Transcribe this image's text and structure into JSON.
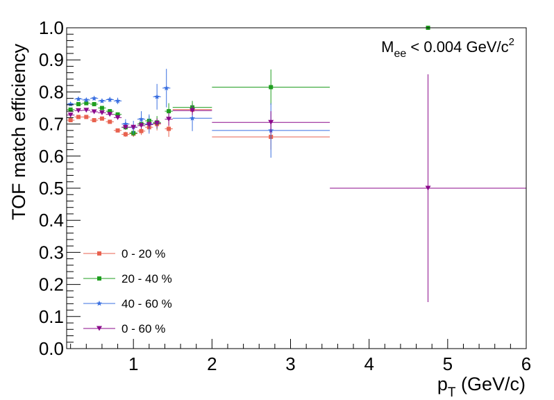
{
  "chart_data": {
    "type": "scatter",
    "xlabel_main": "p",
    "xlabel_sub": "T",
    "xlabel_rest": " (GeV/c)",
    "ylabel": "TOF match efficiency",
    "xlim": [
      0.15,
      6.0
    ],
    "ylim": [
      0.0,
      1.0
    ],
    "x_ticks": [
      1,
      2,
      3,
      4,
      5,
      6
    ],
    "x_tick_labels": [
      "1",
      "2",
      "3",
      "4",
      "5",
      "6"
    ],
    "y_ticks": [
      0.0,
      0.1,
      0.2,
      0.3,
      0.4,
      0.5,
      0.6,
      0.7,
      0.8,
      0.9,
      1.0
    ],
    "y_tick_labels": [
      "0.0",
      "0.1",
      "0.2",
      "0.3",
      "0.4",
      "0.5",
      "0.6",
      "0.7",
      "0.8",
      "0.9",
      "1.0"
    ],
    "grid": false,
    "legend_position": "bottom-left",
    "annotation": {
      "main": "M",
      "sub": "ee",
      "rest": " < 0.004 GeV/c",
      "sup": "2"
    },
    "series": [
      {
        "name": "0 - 20 %",
        "color": "#e8624f",
        "marker": "square",
        "points": [
          {
            "x": 0.2,
            "y": 0.712,
            "xerr": 0.05,
            "yerr": 0.006
          },
          {
            "x": 0.3,
            "y": 0.722,
            "xerr": 0.05,
            "yerr": 0.006
          },
          {
            "x": 0.4,
            "y": 0.722,
            "xerr": 0.05,
            "yerr": 0.006
          },
          {
            "x": 0.5,
            "y": 0.712,
            "xerr": 0.05,
            "yerr": 0.006
          },
          {
            "x": 0.6,
            "y": 0.717,
            "xerr": 0.05,
            "yerr": 0.006
          },
          {
            "x": 0.7,
            "y": 0.707,
            "xerr": 0.05,
            "yerr": 0.006
          },
          {
            "x": 0.8,
            "y": 0.68,
            "xerr": 0.05,
            "yerr": 0.006
          },
          {
            "x": 0.9,
            "y": 0.668,
            "xerr": 0.05,
            "yerr": 0.008
          },
          {
            "x": 1.0,
            "y": 0.67,
            "xerr": 0.05,
            "yerr": 0.01
          },
          {
            "x": 1.1,
            "y": 0.678,
            "xerr": 0.05,
            "yerr": 0.012
          },
          {
            "x": 1.2,
            "y": 0.69,
            "xerr": 0.05,
            "yerr": 0.015
          },
          {
            "x": 1.3,
            "y": 0.7,
            "xerr": 0.05,
            "yerr": 0.02
          },
          {
            "x": 1.45,
            "y": 0.685,
            "xerr": 0.05,
            "yerr": 0.025
          },
          {
            "x": 1.75,
            "y": 0.745,
            "xerr": 0.25,
            "yerr": 0.02
          },
          {
            "x": 2.75,
            "y": 0.66,
            "xerr": 0.75,
            "yerr": 0.04
          }
        ]
      },
      {
        "name": "20 - 40 %",
        "color": "#1f9e1f",
        "marker": "square",
        "points": [
          {
            "x": 0.2,
            "y": 0.745,
            "xerr": 0.05,
            "yerr": 0.006
          },
          {
            "x": 0.3,
            "y": 0.762,
            "xerr": 0.05,
            "yerr": 0.006
          },
          {
            "x": 0.4,
            "y": 0.765,
            "xerr": 0.05,
            "yerr": 0.006
          },
          {
            "x": 0.5,
            "y": 0.762,
            "xerr": 0.05,
            "yerr": 0.006
          },
          {
            "x": 0.6,
            "y": 0.75,
            "xerr": 0.05,
            "yerr": 0.006
          },
          {
            "x": 0.7,
            "y": 0.74,
            "xerr": 0.05,
            "yerr": 0.006
          },
          {
            "x": 0.8,
            "y": 0.73,
            "xerr": 0.05,
            "yerr": 0.006
          },
          {
            "x": 0.9,
            "y": 0.69,
            "xerr": 0.05,
            "yerr": 0.008
          },
          {
            "x": 1.0,
            "y": 0.672,
            "xerr": 0.05,
            "yerr": 0.01
          },
          {
            "x": 1.1,
            "y": 0.7,
            "xerr": 0.05,
            "yerr": 0.012
          },
          {
            "x": 1.2,
            "y": 0.71,
            "xerr": 0.05,
            "yerr": 0.015
          },
          {
            "x": 1.3,
            "y": 0.705,
            "xerr": 0.05,
            "yerr": 0.02
          },
          {
            "x": 1.45,
            "y": 0.74,
            "xerr": 0.05,
            "yerr": 0.025
          },
          {
            "x": 1.75,
            "y": 0.752,
            "xerr": 0.25,
            "yerr": 0.02
          },
          {
            "x": 2.75,
            "y": 0.815,
            "xerr": 0.75,
            "yerr": 0.055
          },
          {
            "x": 4.75,
            "y": 1.0,
            "xerr": 0.0,
            "yerr": 0.0
          }
        ]
      },
      {
        "name": "40 - 60 %",
        "color": "#3a6fe0",
        "marker": "star",
        "points": [
          {
            "x": 0.2,
            "y": 0.762,
            "xerr": 0.05,
            "yerr": 0.006
          },
          {
            "x": 0.3,
            "y": 0.778,
            "xerr": 0.05,
            "yerr": 0.006
          },
          {
            "x": 0.4,
            "y": 0.775,
            "xerr": 0.05,
            "yerr": 0.006
          },
          {
            "x": 0.5,
            "y": 0.78,
            "xerr": 0.05,
            "yerr": 0.006
          },
          {
            "x": 0.6,
            "y": 0.772,
            "xerr": 0.05,
            "yerr": 0.006
          },
          {
            "x": 0.7,
            "y": 0.776,
            "xerr": 0.05,
            "yerr": 0.008
          },
          {
            "x": 0.8,
            "y": 0.772,
            "xerr": 0.05,
            "yerr": 0.01
          },
          {
            "x": 0.9,
            "y": 0.7,
            "xerr": 0.05,
            "yerr": 0.015
          },
          {
            "x": 1.0,
            "y": 0.69,
            "xerr": 0.05,
            "yerr": 0.02
          },
          {
            "x": 1.1,
            "y": 0.715,
            "xerr": 0.05,
            "yerr": 0.025
          },
          {
            "x": 1.2,
            "y": 0.7,
            "xerr": 0.05,
            "yerr": 0.03
          },
          {
            "x": 1.3,
            "y": 0.785,
            "xerr": 0.05,
            "yerr": 0.04
          },
          {
            "x": 1.42,
            "y": 0.812,
            "xerr": 0.05,
            "yerr": 0.06
          },
          {
            "x": 1.75,
            "y": 0.718,
            "xerr": 0.25,
            "yerr": 0.04
          },
          {
            "x": 2.75,
            "y": 0.68,
            "xerr": 0.75,
            "yerr": 0.085
          }
        ]
      },
      {
        "name": "0 - 60 %",
        "color": "#8b0a8b",
        "marker": "triangle-down",
        "points": [
          {
            "x": 0.2,
            "y": 0.728,
            "xerr": 0.05,
            "yerr": 0.005
          },
          {
            "x": 0.3,
            "y": 0.742,
            "xerr": 0.05,
            "yerr": 0.005
          },
          {
            "x": 0.4,
            "y": 0.743,
            "xerr": 0.05,
            "yerr": 0.005
          },
          {
            "x": 0.5,
            "y": 0.738,
            "xerr": 0.05,
            "yerr": 0.005
          },
          {
            "x": 0.6,
            "y": 0.735,
            "xerr": 0.05,
            "yerr": 0.005
          },
          {
            "x": 0.7,
            "y": 0.73,
            "xerr": 0.05,
            "yerr": 0.005
          },
          {
            "x": 0.8,
            "y": 0.72,
            "xerr": 0.05,
            "yerr": 0.005
          },
          {
            "x": 0.9,
            "y": 0.69,
            "xerr": 0.05,
            "yerr": 0.006
          },
          {
            "x": 1.0,
            "y": 0.69,
            "xerr": 0.05,
            "yerr": 0.008
          },
          {
            "x": 1.1,
            "y": 0.695,
            "xerr": 0.05,
            "yerr": 0.01
          },
          {
            "x": 1.2,
            "y": 0.698,
            "xerr": 0.05,
            "yerr": 0.012
          },
          {
            "x": 1.3,
            "y": 0.702,
            "xerr": 0.05,
            "yerr": 0.015
          },
          {
            "x": 1.45,
            "y": 0.715,
            "xerr": 0.05,
            "yerr": 0.02
          },
          {
            "x": 1.75,
            "y": 0.742,
            "xerr": 0.25,
            "yerr": 0.015
          },
          {
            "x": 2.75,
            "y": 0.705,
            "xerr": 0.75,
            "yerr": 0.035
          },
          {
            "x": 4.75,
            "y": 0.5,
            "xerr": 1.25,
            "yerr": 0.355
          }
        ]
      }
    ]
  }
}
